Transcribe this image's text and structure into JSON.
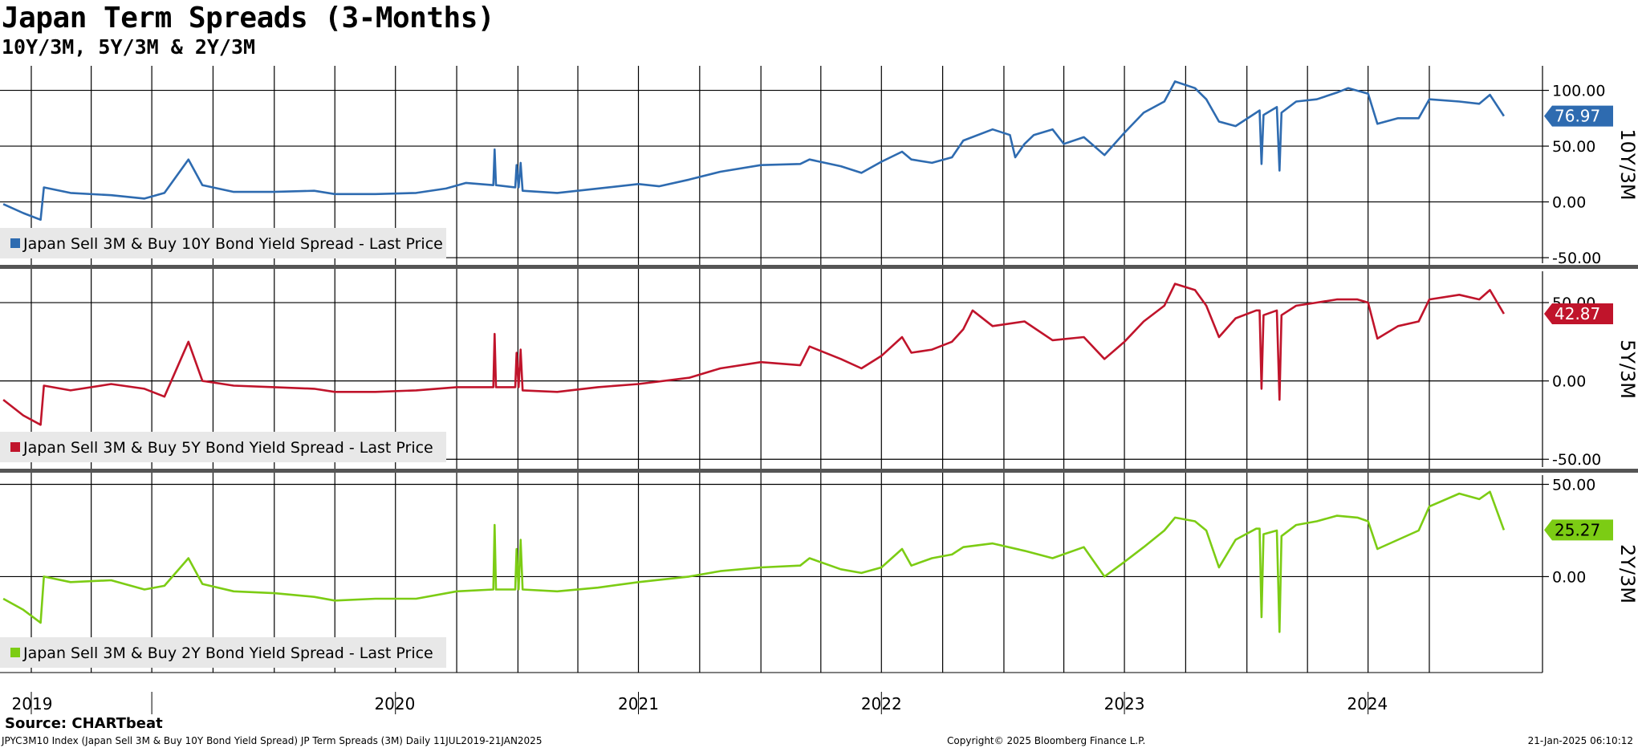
{
  "title": "Japan Term Spreads (3-Months)",
  "subtitle": "10Y/3M, 5Y/3M & 2Y/3M",
  "source": "Source: CHARTbeat",
  "footer": {
    "left": "JPYC3M10 Index (Japan Sell 3M & Buy 10Y Bond Yield Spread) JP Term Spreads (3M)  Daily 11JUL2019-21JAN2025",
    "center": "Copyright© 2025 Bloomberg Finance L.P.",
    "right": "21-Jan-2025 06:10:12"
  },
  "chart_data": [
    {
      "type": "line",
      "panel_label": "10Y/3M",
      "legend": "Japan Sell 3M & Buy 10Y Bond Yield Spread - Last Price",
      "color": "#2e6bb0",
      "last_value": 76.97,
      "last_label": "76.97",
      "ylim": [
        -55,
        122
      ],
      "yticks": [
        100,
        50,
        0,
        -50
      ],
      "ytick_labels": [
        "100.00",
        "50.00",
        "0.00",
        "-50.00"
      ],
      "points": [
        [
          "2018-11-20",
          -2
        ],
        [
          "2018-12-20",
          -10
        ],
        [
          "2019-01-15",
          -16
        ],
        [
          "2019-01-20",
          13
        ],
        [
          "2019-03-01",
          8
        ],
        [
          "2019-05-01",
          6
        ],
        [
          "2019-06-20",
          3
        ],
        [
          "2019-07-20",
          8
        ],
        [
          "2019-08-25",
          38
        ],
        [
          "2019-09-15",
          15
        ],
        [
          "2019-11-01",
          9
        ],
        [
          "2019-12-31",
          9
        ],
        [
          "2020-03-01",
          10
        ],
        [
          "2020-04-01",
          7
        ],
        [
          "2020-06-01",
          7
        ],
        [
          "2020-08-01",
          8
        ],
        [
          "2020-09-15",
          12
        ],
        [
          "2020-10-15",
          17
        ],
        [
          "2020-11-25",
          15
        ],
        [
          "2020-11-27",
          47
        ],
        [
          "2020-11-29",
          15
        ],
        [
          "2020-12-28",
          13
        ],
        [
          "2020-12-30",
          33
        ],
        [
          "2021-01-02",
          13
        ],
        [
          "2021-01-05",
          35
        ],
        [
          "2021-01-08",
          10
        ],
        [
          "2021-03-01",
          8
        ],
        [
          "2021-05-01",
          12
        ],
        [
          "2021-07-01",
          16
        ],
        [
          "2021-08-01",
          14
        ],
        [
          "2021-09-15",
          20
        ],
        [
          "2021-11-01",
          27
        ],
        [
          "2022-01-01",
          33
        ],
        [
          "2022-03-01",
          34
        ],
        [
          "2022-03-15",
          38
        ],
        [
          "2022-05-01",
          32
        ],
        [
          "2022-06-01",
          26
        ],
        [
          "2022-07-01",
          36
        ],
        [
          "2022-08-01",
          45
        ],
        [
          "2022-08-15",
          38
        ],
        [
          "2022-09-15",
          35
        ],
        [
          "2022-10-15",
          40
        ],
        [
          "2022-11-01",
          55
        ],
        [
          "2022-12-15",
          65
        ],
        [
          "2023-01-10",
          60
        ],
        [
          "2023-01-18",
          40
        ],
        [
          "2023-02-01",
          52
        ],
        [
          "2023-02-15",
          60
        ],
        [
          "2023-03-15",
          65
        ],
        [
          "2023-04-01",
          52
        ],
        [
          "2023-05-01",
          58
        ],
        [
          "2023-06-01",
          42
        ],
        [
          "2023-07-01",
          62
        ],
        [
          "2023-07-30",
          80
        ],
        [
          "2023-08-30",
          90
        ],
        [
          "2023-09-15",
          108
        ],
        [
          "2023-10-15",
          102
        ],
        [
          "2023-11-01",
          92
        ],
        [
          "2023-11-20",
          72
        ],
        [
          "2023-12-15",
          68
        ],
        [
          "2024-01-15",
          80
        ],
        [
          "2024-01-20",
          82
        ],
        [
          "2024-01-23",
          34
        ],
        [
          "2024-01-26",
          78
        ],
        [
          "2024-02-15",
          85
        ],
        [
          "2024-02-19",
          28
        ],
        [
          "2024-02-22",
          80
        ],
        [
          "2024-03-15",
          90
        ],
        [
          "2024-04-15",
          92
        ],
        [
          "2024-05-15",
          98
        ],
        [
          "2024-06-01",
          102
        ],
        [
          "2024-07-01",
          97
        ],
        [
          "2024-07-15",
          70
        ],
        [
          "2024-08-15",
          75
        ],
        [
          "2024-09-15",
          75
        ],
        [
          "2024-10-01",
          92
        ],
        [
          "2024-11-15",
          90
        ],
        [
          "2024-12-15",
          88
        ],
        [
          "2024-12-31",
          96
        ],
        [
          "2025-01-21",
          76.97
        ]
      ]
    },
    {
      "type": "line",
      "panel_label": "5Y/3M",
      "legend": "Japan Sell 3M & Buy 5Y Bond Yield Spread - Last Price",
      "color": "#c0142b",
      "last_value": 42.87,
      "last_label": "42.87",
      "ylim": [
        -55,
        70
      ],
      "yticks": [
        50,
        0,
        -50
      ],
      "ytick_labels": [
        "50.00",
        "0.00",
        "-50.00"
      ],
      "points": [
        [
          "2018-11-20",
          -12
        ],
        [
          "2018-12-20",
          -22
        ],
        [
          "2019-01-15",
          -28
        ],
        [
          "2019-01-20",
          -3
        ],
        [
          "2019-03-01",
          -6
        ],
        [
          "2019-05-01",
          -2
        ],
        [
          "2019-06-20",
          -5
        ],
        [
          "2019-07-20",
          -10
        ],
        [
          "2019-08-25",
          25
        ],
        [
          "2019-09-15",
          0
        ],
        [
          "2019-11-01",
          -3
        ],
        [
          "2020-01-01",
          -4
        ],
        [
          "2020-03-01",
          -5
        ],
        [
          "2020-04-01",
          -7
        ],
        [
          "2020-06-01",
          -7
        ],
        [
          "2020-08-01",
          -6
        ],
        [
          "2020-10-01",
          -4
        ],
        [
          "2020-11-25",
          -4
        ],
        [
          "2020-11-27",
          30
        ],
        [
          "2020-11-29",
          -4
        ],
        [
          "2020-12-28",
          -4
        ],
        [
          "2020-12-30",
          18
        ],
        [
          "2021-01-02",
          -4
        ],
        [
          "2021-01-05",
          20
        ],
        [
          "2021-01-08",
          -6
        ],
        [
          "2021-03-01",
          -7
        ],
        [
          "2021-05-01",
          -4
        ],
        [
          "2021-07-01",
          -2
        ],
        [
          "2021-09-15",
          2
        ],
        [
          "2021-11-01",
          8
        ],
        [
          "2022-01-01",
          12
        ],
        [
          "2022-03-01",
          10
        ],
        [
          "2022-03-15",
          22
        ],
        [
          "2022-05-01",
          14
        ],
        [
          "2022-06-01",
          8
        ],
        [
          "2022-07-01",
          16
        ],
        [
          "2022-08-01",
          28
        ],
        [
          "2022-08-15",
          18
        ],
        [
          "2022-09-15",
          20
        ],
        [
          "2022-10-15",
          25
        ],
        [
          "2022-11-01",
          33
        ],
        [
          "2022-11-15",
          45
        ],
        [
          "2022-12-15",
          35
        ],
        [
          "2023-02-01",
          38
        ],
        [
          "2023-03-15",
          26
        ],
        [
          "2023-05-01",
          28
        ],
        [
          "2023-06-01",
          14
        ],
        [
          "2023-07-01",
          25
        ],
        [
          "2023-07-30",
          38
        ],
        [
          "2023-08-30",
          48
        ],
        [
          "2023-09-15",
          62
        ],
        [
          "2023-10-15",
          58
        ],
        [
          "2023-11-01",
          48
        ],
        [
          "2023-11-20",
          28
        ],
        [
          "2023-12-15",
          40
        ],
        [
          "2024-01-15",
          45
        ],
        [
          "2024-01-20",
          45
        ],
        [
          "2024-01-23",
          -5
        ],
        [
          "2024-01-26",
          42
        ],
        [
          "2024-02-15",
          45
        ],
        [
          "2024-02-19",
          -12
        ],
        [
          "2024-02-22",
          42
        ],
        [
          "2024-03-15",
          48
        ],
        [
          "2024-04-15",
          50
        ],
        [
          "2024-05-15",
          52
        ],
        [
          "2024-06-15",
          52
        ],
        [
          "2024-07-01",
          50
        ],
        [
          "2024-07-15",
          27
        ],
        [
          "2024-08-15",
          35
        ],
        [
          "2024-09-15",
          38
        ],
        [
          "2024-10-01",
          52
        ],
        [
          "2024-11-15",
          55
        ],
        [
          "2024-12-15",
          52
        ],
        [
          "2024-12-31",
          58
        ],
        [
          "2025-01-21",
          42.87
        ]
      ]
    },
    {
      "type": "line",
      "panel_label": "2Y/3M",
      "legend": "Japan Sell 3M & Buy 2Y Bond Yield Spread - Last Price",
      "color": "#7ccc14",
      "last_value": 25.27,
      "last_label": "25.27",
      "ylim": [
        -52,
        55
      ],
      "yticks": [
        50,
        0
      ],
      "ytick_labels": [
        "50.00",
        "0.00"
      ],
      "points": [
        [
          "2018-11-20",
          -12
        ],
        [
          "2018-12-20",
          -18
        ],
        [
          "2019-01-15",
          -25
        ],
        [
          "2019-01-20",
          0
        ],
        [
          "2019-03-01",
          -3
        ],
        [
          "2019-05-01",
          -2
        ],
        [
          "2019-06-20",
          -7
        ],
        [
          "2019-07-20",
          -5
        ],
        [
          "2019-08-25",
          10
        ],
        [
          "2019-09-15",
          -4
        ],
        [
          "2019-11-01",
          -8
        ],
        [
          "2020-01-01",
          -9
        ],
        [
          "2020-03-01",
          -11
        ],
        [
          "2020-04-01",
          -13
        ],
        [
          "2020-06-01",
          -12
        ],
        [
          "2020-08-01",
          -12
        ],
        [
          "2020-10-01",
          -8
        ],
        [
          "2020-11-25",
          -7
        ],
        [
          "2020-11-27",
          28
        ],
        [
          "2020-11-29",
          -7
        ],
        [
          "2020-12-28",
          -7
        ],
        [
          "2020-12-30",
          15
        ],
        [
          "2021-01-02",
          -7
        ],
        [
          "2021-01-05",
          20
        ],
        [
          "2021-01-08",
          -7
        ],
        [
          "2021-03-01",
          -8
        ],
        [
          "2021-05-01",
          -6
        ],
        [
          "2021-07-01",
          -3
        ],
        [
          "2021-09-15",
          0
        ],
        [
          "2021-11-01",
          3
        ],
        [
          "2022-01-01",
          5
        ],
        [
          "2022-03-01",
          6
        ],
        [
          "2022-03-15",
          10
        ],
        [
          "2022-05-01",
          4
        ],
        [
          "2022-06-01",
          2
        ],
        [
          "2022-07-01",
          5
        ],
        [
          "2022-08-01",
          15
        ],
        [
          "2022-08-15",
          6
        ],
        [
          "2022-09-15",
          10
        ],
        [
          "2022-10-15",
          12
        ],
        [
          "2022-11-01",
          16
        ],
        [
          "2022-12-15",
          18
        ],
        [
          "2023-02-01",
          14
        ],
        [
          "2023-03-15",
          10
        ],
        [
          "2023-05-01",
          16
        ],
        [
          "2023-06-01",
          0
        ],
        [
          "2023-07-01",
          8
        ],
        [
          "2023-07-30",
          16
        ],
        [
          "2023-08-30",
          25
        ],
        [
          "2023-09-15",
          32
        ],
        [
          "2023-10-15",
          30
        ],
        [
          "2023-11-01",
          25
        ],
        [
          "2023-11-20",
          5
        ],
        [
          "2023-12-15",
          20
        ],
        [
          "2024-01-15",
          26
        ],
        [
          "2024-01-20",
          26
        ],
        [
          "2024-01-23",
          -22
        ],
        [
          "2024-01-26",
          23
        ],
        [
          "2024-02-15",
          25
        ],
        [
          "2024-02-19",
          -30
        ],
        [
          "2024-02-22",
          22
        ],
        [
          "2024-03-15",
          28
        ],
        [
          "2024-04-15",
          30
        ],
        [
          "2024-05-15",
          33
        ],
        [
          "2024-06-15",
          32
        ],
        [
          "2024-07-01",
          30
        ],
        [
          "2024-07-15",
          15
        ],
        [
          "2024-08-15",
          20
        ],
        [
          "2024-09-15",
          25
        ],
        [
          "2024-10-01",
          38
        ],
        [
          "2024-11-15",
          45
        ],
        [
          "2024-12-15",
          42
        ],
        [
          "2024-12-31",
          46
        ],
        [
          "2025-01-21",
          25.27
        ]
      ]
    }
  ],
  "x_axis": {
    "start": "2018-11-15",
    "end": "2025-03-20",
    "year_labels": [
      {
        "text": "2019",
        "date": "2019-01-01"
      },
      {
        "text": "2020",
        "date": "2020-01-01"
      },
      {
        "text": "2021",
        "date": "2021-01-01"
      },
      {
        "text": "2022",
        "date": "2022-01-01"
      },
      {
        "text": "2023",
        "date": "2023-01-01"
      },
      {
        "text": "2024",
        "date": "2024-01-01"
      }
    ],
    "gridlines": [
      "2019-01-01",
      "2019-04-01",
      "2019-07-01",
      "2019-10-01",
      "2020-01-01",
      "2020-04-01",
      "2020-07-01",
      "2020-10-01",
      "2021-01-01",
      "2021-04-01",
      "2021-07-01",
      "2021-10-01",
      "2022-01-01",
      "2022-04-01",
      "2022-07-01",
      "2022-10-01",
      "2023-01-01",
      "2023-04-01",
      "2023-07-01",
      "2023-10-01",
      "2024-01-01",
      "2024-04-01",
      "2024-07-01",
      "2024-10-01"
    ]
  }
}
